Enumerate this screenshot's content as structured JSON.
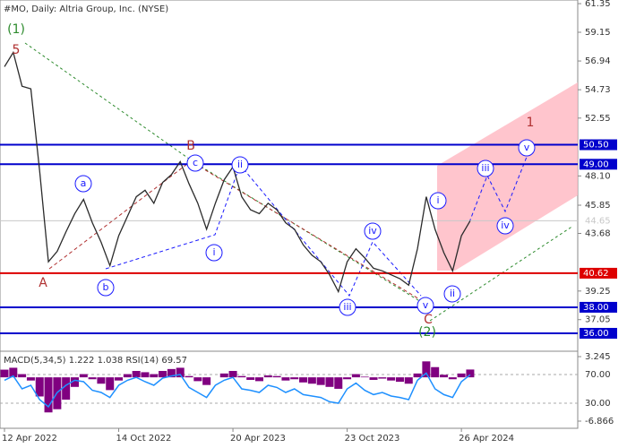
{
  "chart_data": [
    {
      "type": "line",
      "title": "#MO, Daily:  Altria Group, Inc. (NYSE)",
      "categories": [
        "12 Apr 2022",
        null,
        null,
        null,
        null,
        null,
        null,
        null,
        null,
        null,
        null,
        null,
        null,
        "14 Oct 2022",
        null,
        null,
        null,
        null,
        null,
        null,
        null,
        null,
        null,
        null,
        null,
        null,
        "20 Apr 2023",
        null,
        null,
        null,
        null,
        null,
        null,
        null,
        null,
        null,
        null,
        null,
        null,
        "23 Oct 2023",
        null,
        null,
        null,
        null,
        null,
        null,
        null,
        null,
        null,
        null,
        null,
        null,
        "26 Apr 2024",
        null
      ],
      "series": [
        {
          "color": "#2b2b2b",
          "values": [
            56.5,
            57.6,
            55.0,
            54.8,
            48.5,
            41.5,
            42.3,
            43.8,
            45.2,
            46.3,
            44.5,
            43.0,
            41.2,
            43.5,
            45.0,
            46.5,
            47.0,
            46.0,
            47.6,
            48.2,
            49.2,
            47.5,
            46.0,
            44.0,
            46.0,
            47.8,
            48.8,
            46.5,
            45.5,
            45.2,
            46.0,
            45.5,
            44.5,
            44.0,
            42.8,
            42.0,
            41.5,
            40.5,
            39.2,
            41.5,
            42.5,
            41.8,
            41.0,
            40.8,
            40.5,
            40.2,
            39.7,
            42.5,
            46.5,
            44.0,
            42.2,
            40.8,
            43.5,
            44.65
          ]
        }
      ],
      "ylim": [
        34.62,
        61.63
      ],
      "yticks": [
        61.35,
        59.15,
        56.94,
        54.73,
        52.55,
        {
          "value": 48.1,
          "label": "48.10"
        },
        45.85,
        43.68,
        39.25,
        37.05
      ],
      "levels": [
        {
          "value": 50.5,
          "label": "50.50",
          "color": "#0000cc"
        },
        {
          "value": 49,
          "label": "49.00",
          "color": "#0000cc"
        },
        {
          "value": 40.62,
          "label": "40.62",
          "color": "#dd0000"
        },
        {
          "value": 38,
          "label": "38.00",
          "color": "#0000cc"
        },
        {
          "value": 36,
          "label": "36.00",
          "color": "#0000cc"
        }
      ],
      "current_price": {
        "value": 44.65,
        "label": "44.65",
        "color": "#c8c8c8"
      },
      "annotations": [
        {
          "text": "(1)",
          "color": "#2e8b2e",
          "circled": false
        },
        {
          "text": "5",
          "color": "#b03030",
          "circled": false
        },
        {
          "text": "A",
          "color": "#b03030",
          "circled": false
        },
        {
          "text": "a",
          "color": "#1a1aff",
          "circled": true
        },
        {
          "text": "b",
          "color": "#1a1aff",
          "circled": true
        },
        {
          "text": "B",
          "color": "#b03030",
          "circled": false
        },
        {
          "text": "c",
          "color": "#1a1aff",
          "circled": true
        },
        {
          "text": "i",
          "color": "#1a1aff",
          "circled": true
        },
        {
          "text": "ii",
          "color": "#1a1aff",
          "circled": true
        },
        {
          "text": "iii",
          "color": "#1a1aff",
          "circled": true
        },
        {
          "text": "iv",
          "color": "#1a1aff",
          "circled": true
        },
        {
          "text": "v",
          "color": "#1a1aff",
          "circled": true
        },
        {
          "text": "C",
          "color": "#b03030",
          "circled": false
        },
        {
          "text": "(2)",
          "color": "#2e8b2e",
          "circled": false
        },
        {
          "text": "i",
          "color": "#1a1aff",
          "circled": true
        },
        {
          "text": "ii",
          "color": "#1a1aff",
          "circled": true
        },
        {
          "text": "iii",
          "color": "#1a1aff",
          "circled": true
        },
        {
          "text": "iv",
          "color": "#1a1aff",
          "circled": true
        },
        {
          "text": "v",
          "color": "#1a1aff",
          "circled": true
        },
        {
          "text": "1",
          "color": "#b03030",
          "circled": false
        }
      ]
    },
    {
      "type": "indicator",
      "title": "MACD(5,34,5) 1.222 1.038 RSI(14) 69.57",
      "series": [
        {
          "type": "bar",
          "color": "#800080",
          "axis": "y",
          "values": [
            1.2,
            1.5,
            0.5,
            -0.5,
            -3,
            -5.5,
            -5,
            -3.5,
            -1.5,
            0.5,
            -0.3,
            -1,
            -2,
            -0.5,
            0.5,
            1,
            0.8,
            0.5,
            1,
            1.3,
            1.5,
            0.2,
            -0.6,
            -1.2,
            0,
            0.6,
            1,
            0.2,
            -0.4,
            -0.6,
            0.3,
            0.2,
            -0.5,
            -0.3,
            -0.8,
            -1,
            -1.2,
            -1.5,
            -1.8,
            -0.3,
            0.5,
            0.1,
            -0.4,
            -0.2,
            -0.5,
            -0.7,
            -1,
            0.6,
            2.5,
            1.6,
            0.4,
            -0.3,
            0.6,
            1.222
          ]
        },
        {
          "type": "line",
          "color": "#1e90ff",
          "axis": "y2",
          "values": [
            62,
            68,
            50,
            55,
            35,
            25,
            45,
            55,
            62,
            60,
            48,
            45,
            38,
            55,
            62,
            66,
            60,
            55,
            65,
            68,
            70,
            52,
            45,
            38,
            55,
            62,
            66,
            50,
            48,
            45,
            55,
            52,
            45,
            50,
            42,
            40,
            38,
            32,
            30,
            50,
            58,
            48,
            42,
            45,
            40,
            38,
            35,
            62,
            72,
            50,
            42,
            38,
            60,
            69.57
          ]
        }
      ],
      "ylim": [
        -7.99,
        3.95
      ],
      "yticks": [
        3.245,
        -6.866
      ],
      "y2lim": [
        -5,
        101.25
      ],
      "y2ticks": [
        {
          "value": 70,
          "label": "70.00"
        },
        {
          "value": 30,
          "label": "30.00"
        }
      ]
    }
  ]
}
